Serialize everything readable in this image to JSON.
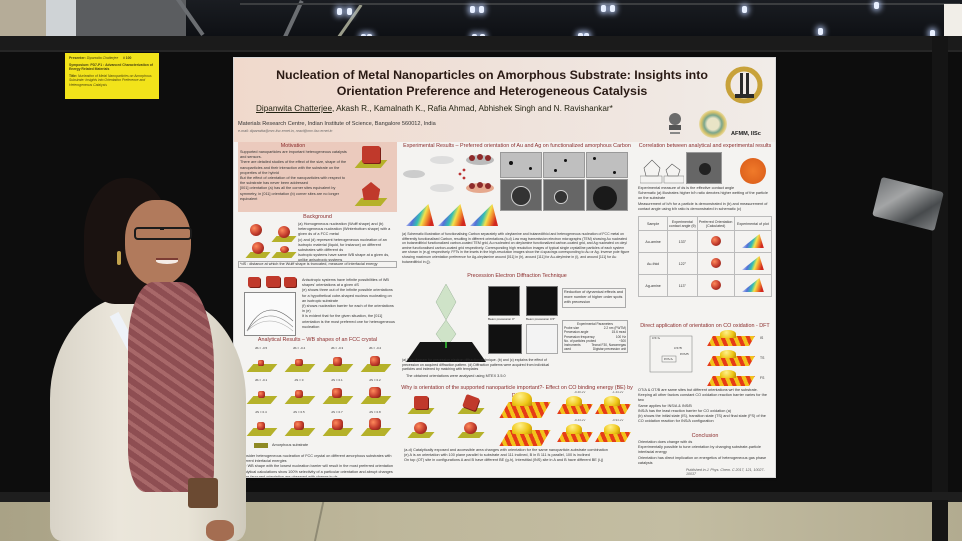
{
  "scene": {
    "description": "Conference poster session: presenter standing beside a scientific poster on a black display board",
    "booth_tag": {
      "presenter_label": "Presenter:",
      "presenter_name": "Dipanwita Chatterjee",
      "board_number": "# 100",
      "symposium_label": "Symposium:",
      "symposium_name": "PD7-P1 : Advanced Characterization of Energy Related Materials",
      "title_label": "Title:",
      "title_text": "Nucleation of Metal Nanoparticles on Amorphous Substrate: Insights into Orientation Preference and Heterogeneous Catalysis"
    }
  },
  "poster": {
    "title_line1": "Nucleation of Metal Nanoparticles on Amorphous Substrate: Insights into",
    "title_line2": "Orientation Preference and Heterogeneous Catalysis",
    "lead_author": "Dipanwita Chatterjee",
    "coauthors": ", Akash R., Kamalnath K., Rafia Ahmad, Abhishek Singh and N. Ravishankar*",
    "affiliation": "Materials Research Centre, Indian Institute of Science, Bangalore 560012, India",
    "email": "e-mail: dipanwita@mrc.iisc.ernet.in, nravi@mrc.iisc.ernet.in",
    "logo_label": "AFMM, IISc",
    "motivation": {
      "title": "Motivation",
      "bullets": [
        "Supported nanoparticles are important heterogeneous catalysts and sensors.",
        "There are detailed studies of the effect of the size, shape of the nanoparticles and their interaction with the substrate on the properties of the hybrid",
        "But the effect of orientation of the nanoparticles with respect to the substrate has never been addressed",
        "[001] orientation (a) has all the corner sites equivalent by symmetry, in [011] orientation (b) corner sites are no longer equivalent"
      ],
      "fig_labels": [
        "[001]",
        "[011]"
      ]
    },
    "background": {
      "title": "Background",
      "bullets": [
        "(a) Homogeneous nucleation (Wulff shape) and (b) heterogeneous nucleation (Winterbottom shape) with a given ds of a FCC metal",
        "(c) and (d) represent heterogeneous nucleation of an isotropic material (liquid, for instance) on different substrates with different ds",
        "Isotropic systems have same WB shape at a given ds, unlike anisotropic systems"
      ],
      "note": "*dS : distance at which the Wulff shape is truncated, measure of interfacial energy",
      "bullets2": [
        "Anisotropic systems have infinite possibilities of WB shapes' orientations at a given dS",
        "(e) shows three out of the infinite possible orientations for a hypothetical cube-shaped nucleus nucleating on an isotropic substrate",
        "(f) shows nucleation barrier for each of the orientations in (e)",
        "It is evident that for the given situation, the [011] orientation is the most preferred one for heterogeneous nucleation"
      ],
      "fig_labels": [
        "[110]",
        "[010]",
        "[011]"
      ]
    },
    "analytical": {
      "title": "Analytical Results – WB shapes of an FCC crystal",
      "ds_labels": [
        "dS = -0.5",
        "dS = -0.4",
        "dS = -0.3",
        "dS = -0.2",
        "dS = -0.1",
        "dS = 0",
        "dS = 0.1",
        "dS = 0.2",
        "dS = 0.4",
        "dS = 0.5",
        "dS = 0.7",
        "dS = 0.8"
      ],
      "legend": "Amorphous substrate",
      "bullets": [
        "Consider heterogeneous nucleation of FCC crystal on different amorphous substrates with different interfacial energies",
        "The WB shape with the lowest nucleation barrier will result in the most preferred orientation",
        "Analytical calculations show 100% selectivity of a particular orientation and abrupt changes in the favoured orientation are observed with change in ds",
        "Experimentally we expect a distribution in the orientation of nucleation"
      ]
    },
    "experimental": {
      "title": "Experimental Results – Preferred orientation of Au and Ag on functionalized amorphous Carbon",
      "scheme_labels": [
        "Amorphous carbon",
        "Functionalization",
        "Nucleation",
        "[011]",
        "[111]",
        "Nucleation with preferred orientation"
      ],
      "scale_labels": [
        "500 nm",
        "500 nm",
        "500 nm"
      ],
      "caption": "(a) Schematic illustration of functionalising Carbon separately with oleylamine and butanedithiol and heterogeneous nucleation of FCC metal on differently functionalised Carbon, resulting in different orientations.(b-d) Low mag transmission electron micrographs (TEM) showing Au nucleated on butanedithiol functionalized carbon-coated TEM grid, Au nucleated on oleylamine functionalized carbon-coated grid, and Ag nucleated on oleyl amine functionalised carbon-coated grid respectively. Corresponding high resolution images of typical single crystalline particles of each system are shown in (e-g) respectively. FFTs in the insets in the high-resolution images show the d-spacings corresponding to Au or Ag. Inverse pole figure showing maximum orientation preference for Ag-oleylamine around [011] in (h), around [111] for Au-oleylmine in (i), and around [111] for Au butanedithiol in (j)."
    },
    "ped": {
      "title": "Precession Electron Diffraction Technique",
      "diagram_labels": [
        "Scan",
        "Specimen",
        "De-scan"
      ],
      "pattern_labels": [
        "Beam precession 0°",
        "Beam precession 0.5°"
      ],
      "reduction_note": "Reduction of dynamical effects and more number of higher order spots with precession",
      "params_title": "Experimental Parameters",
      "params": [
        {
          "name": "Probe size",
          "value": "2.2 nm (FWTM)"
        },
        {
          "name": "Precession angle",
          "value": "15.6 mrad"
        },
        {
          "name": "Precession frequency",
          "value": "100 Hz"
        },
        {
          "name": "No. of particles probed",
          "value": "~300"
        },
        {
          "name": "Instruments used",
          "value": "Tecnai F30, Nanomegas Digistar precession unit"
        }
      ],
      "caption": "(a) Ray diagram for precession electron diffraction technique. (b) and (c) explains the effect of precession on acquired diffraction pattern. (d) Diffraction patterns were acquired from individual particles and indexed by matching with templates",
      "bullet": "The obtained orientations were analysed using MTEX 3.5.0"
    },
    "why": {
      "title": "Why is orientation of the supported nanoparticle important?- Effect on CO binding energy (BE) by DFT",
      "shape_notes": [
        "Exposed area: 97% Accessible area: 37%",
        "Exposed area: 72% Accessible area: 72%",
        "Exposed area: 98% Accessible area: 37%",
        "Exposed area: 88% Accessible area: 79%"
      ],
      "energies": [
        "-0.40 eV",
        "-1.44 eV",
        "-0.44 eV",
        "-0.94 eV"
      ],
      "site_labels": [
        "OT/A",
        "OT/B",
        "INS/A",
        "INS/B"
      ],
      "legend": [
        "Au",
        "O",
        "Mg",
        "Cu"
      ],
      "bullets": [
        "(a-d) Catalytically exposed and accessible area changes with orientation for the same nanoparticle-substrate combination",
        "(e) A is an orientation with 100 plane parallel to substrate and 111 inclined, B in B 111 is parallel, 100 is inclined",
        "On top (OT) site in configurations A and B have different BE (g-h), Interstitial (INS) site in A and B have different BE (i-j)"
      ]
    },
    "correlation": {
      "title": "Correlation between analytical and experimental results",
      "bullets": [
        "Experimental measure of ds is the effective contact angle",
        "Schematic (a) illustrates higher b/h ratio denotes higher wetting of the particle on the substrate",
        "Measurement of b/h for a particle is demonstrated in (b) and measurement of contact angle using b/h ratio is demonstrated in schematic (c)"
      ],
      "table": {
        "headers": [
          "Sample",
          "Experimental contact angle (θ)",
          "Preferred Orientation (Calculated)",
          "Experimental of plot"
        ],
        "rows": [
          [
            "Au-amine",
            "133°"
          ],
          [
            "Au-thiol",
            "122°"
          ],
          [
            "Ag-amine",
            "113°"
          ]
        ]
      }
    },
    "co_oxidation": {
      "title": "Direct application of orientation on CO oxidation - DFT",
      "chart_axis_y": "Reaction Barrier (eV)",
      "chart_axis_x": "dS/C-Γs",
      "chart_y_ticks": [
        "0.3",
        "0.4",
        "0.5",
        "0.6"
      ],
      "chart_x_ticks": [
        "-4",
        "-3",
        "-2",
        "-1"
      ],
      "chart_points": [
        "OT/A",
        "OT/B",
        "INS/B",
        "INS/A"
      ],
      "energy_labels": [
        "0.38 eV",
        "0.47 eV"
      ],
      "state_labels": [
        "IS",
        "TS",
        "FS"
      ],
      "bullets": [
        "OT/A & OT/B are same sites but different orientations wrt the substrate. Keeping all other factors constant CO oxidation reaction barrier varies for the two",
        "Same applies for INS/A & INS/B",
        "INS/A has the least reaction barrier for CO oxidation (a)",
        "(b) shows the initial state (IS), transition state (TS) and final state (FS) of the CO oxidation reaction for INS/A configuration"
      ]
    },
    "conclusion": {
      "title": "Conclusion",
      "bullets": [
        "Orientation does change with ds",
        "Experimentally possible to tune orientation by changing substrate-particle interfacial energy",
        "Orientation has direct implication on energetics of heterogeneous gas phase catalysis"
      ],
      "published": "Published in J. Phys. Chem. C 2017, 121, 10027-10037"
    }
  }
}
